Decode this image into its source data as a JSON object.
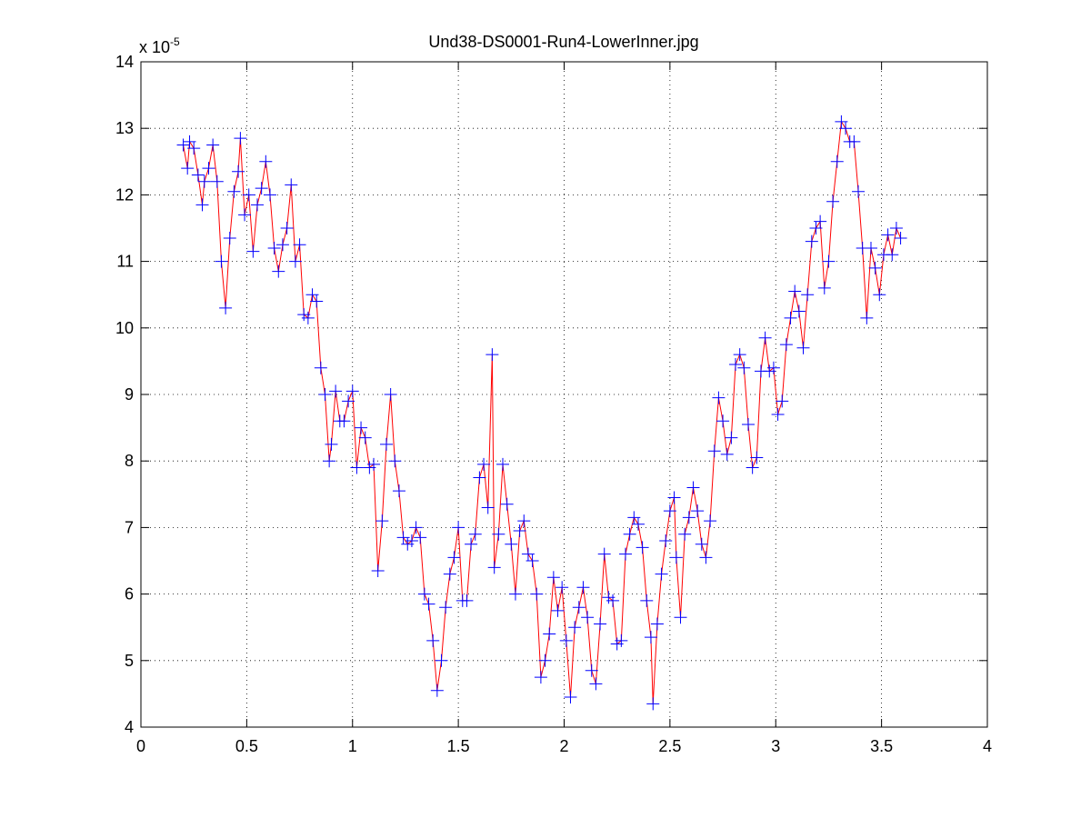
{
  "chart_data": {
    "type": "line",
    "title": "Und38-DS0001-Run4-LowerInner.jpg",
    "y_multiplier": {
      "base": "x 10",
      "exponent": "-5"
    },
    "x": [
      0.2,
      0.22,
      0.23,
      0.25,
      0.27,
      0.29,
      0.3,
      0.32,
      0.34,
      0.36,
      0.38,
      0.4,
      0.42,
      0.44,
      0.46,
      0.47,
      0.49,
      0.51,
      0.53,
      0.55,
      0.57,
      0.59,
      0.61,
      0.63,
      0.65,
      0.67,
      0.69,
      0.71,
      0.73,
      0.75,
      0.77,
      0.79,
      0.81,
      0.83,
      0.85,
      0.87,
      0.89,
      0.9,
      0.92,
      0.94,
      0.96,
      0.98,
      1.0,
      1.02,
      1.04,
      1.06,
      1.08,
      1.1,
      1.12,
      1.14,
      1.16,
      1.18,
      1.2,
      1.22,
      1.24,
      1.26,
      1.28,
      1.3,
      1.32,
      1.34,
      1.36,
      1.38,
      1.4,
      1.42,
      1.44,
      1.46,
      1.48,
      1.5,
      1.52,
      1.54,
      1.56,
      1.58,
      1.6,
      1.62,
      1.64,
      1.66,
      1.67,
      1.69,
      1.71,
      1.73,
      1.75,
      1.77,
      1.79,
      1.81,
      1.83,
      1.85,
      1.87,
      1.89,
      1.91,
      1.93,
      1.95,
      1.97,
      1.99,
      2.01,
      2.03,
      2.05,
      2.07,
      2.09,
      2.11,
      2.13,
      2.15,
      2.17,
      2.19,
      2.21,
      2.23,
      2.25,
      2.27,
      2.29,
      2.31,
      2.33,
      2.35,
      2.37,
      2.39,
      2.41,
      2.42,
      2.44,
      2.46,
      2.48,
      2.5,
      2.52,
      2.53,
      2.55,
      2.57,
      2.59,
      2.61,
      2.63,
      2.65,
      2.67,
      2.69,
      2.71,
      2.73,
      2.75,
      2.77,
      2.79,
      2.81,
      2.83,
      2.85,
      2.87,
      2.89,
      2.91,
      2.93,
      2.95,
      2.97,
      2.99,
      3.01,
      3.03,
      3.05,
      3.07,
      3.09,
      3.11,
      3.13,
      3.15,
      3.17,
      3.19,
      3.21,
      3.23,
      3.25,
      3.27,
      3.29,
      3.31,
      3.33,
      3.35,
      3.37,
      3.39,
      3.41,
      3.43,
      3.45,
      3.47,
      3.49,
      3.51,
      3.53,
      3.55,
      3.57,
      3.59
    ],
    "values": [
      12.75,
      12.4,
      12.8,
      12.7,
      12.3,
      11.85,
      12.2,
      12.4,
      12.75,
      12.2,
      11.0,
      10.3,
      11.35,
      12.05,
      12.35,
      12.85,
      11.7,
      12.0,
      11.15,
      11.85,
      12.1,
      12.5,
      12.0,
      11.2,
      10.85,
      11.25,
      11.5,
      12.15,
      11.0,
      11.25,
      10.2,
      10.15,
      10.5,
      10.4,
      9.4,
      9.0,
      8.0,
      8.25,
      9.05,
      8.6,
      8.6,
      8.9,
      9.05,
      7.9,
      8.5,
      8.35,
      7.9,
      7.95,
      6.35,
      7.1,
      8.25,
      9.0,
      8.0,
      7.55,
      6.85,
      6.75,
      6.8,
      7.0,
      6.85,
      6.0,
      5.85,
      5.3,
      4.55,
      5.0,
      5.8,
      6.3,
      6.55,
      7.0,
      5.9,
      5.9,
      6.75,
      6.9,
      7.75,
      7.95,
      7.3,
      9.6,
      6.4,
      6.9,
      7.95,
      7.35,
      6.75,
      6.0,
      6.95,
      7.1,
      6.6,
      6.5,
      6.0,
      4.75,
      5.0,
      5.4,
      6.25,
      5.75,
      6.1,
      5.3,
      4.45,
      5.5,
      5.8,
      6.1,
      5.65,
      4.85,
      4.65,
      5.55,
      6.6,
      5.95,
      5.9,
      5.25,
      5.3,
      6.6,
      6.9,
      7.15,
      7.05,
      6.7,
      5.9,
      5.35,
      4.35,
      5.55,
      6.3,
      6.8,
      7.25,
      7.45,
      6.55,
      5.65,
      6.9,
      7.15,
      7.6,
      7.25,
      6.75,
      6.55,
      7.1,
      8.15,
      8.95,
      8.6,
      8.1,
      8.35,
      9.45,
      9.6,
      9.4,
      8.55,
      7.9,
      8.05,
      9.35,
      9.85,
      9.35,
      9.4,
      8.7,
      8.9,
      9.75,
      10.15,
      10.55,
      10.25,
      9.7,
      10.5,
      11.3,
      11.5,
      11.6,
      10.6,
      11.0,
      11.9,
      12.5,
      13.1,
      13.0,
      12.8,
      12.8,
      12.05,
      11.2,
      10.15,
      11.2,
      10.9,
      10.5,
      11.1,
      11.4,
      11.1,
      11.5,
      11.35
    ],
    "line_color": "#ff0000",
    "marker_color": "#0000ff",
    "marker": "+",
    "xlim": [
      0,
      4
    ],
    "xticks": [
      0,
      0.5,
      1,
      1.5,
      2,
      2.5,
      3,
      3.5,
      4
    ],
    "ylim": [
      4,
      14
    ],
    "yticks": [
      4,
      5,
      6,
      7,
      8,
      9,
      10,
      11,
      12,
      13,
      14
    ],
    "grid": true
  }
}
